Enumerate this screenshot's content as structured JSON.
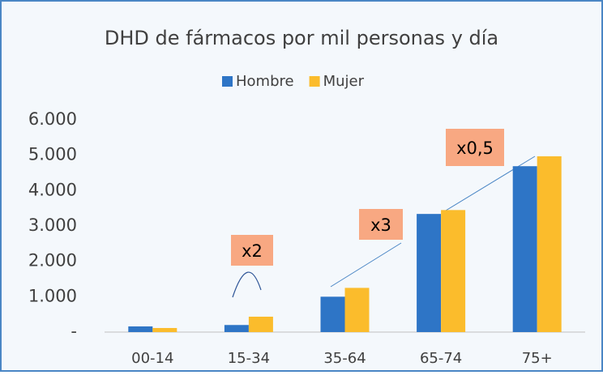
{
  "chart_data": {
    "type": "bar",
    "title": "DHD de fármacos por mil personas y día",
    "categories": [
      "00-14",
      "15-34",
      "35-64",
      "65-74",
      "75+"
    ],
    "series": [
      {
        "name": "Hombre",
        "color": "#2e75c6",
        "values": [
          160,
          200,
          1000,
          3340,
          4690
        ]
      },
      {
        "name": "Mujer",
        "color": "#fbbc2c",
        "values": [
          115,
          435,
          1250,
          3450,
          4970
        ]
      }
    ],
    "ylim": [
      0,
      6000
    ],
    "yticks": [
      {
        "value": 0,
        "label": "-"
      },
      {
        "value": 1000,
        "label": "1.000"
      },
      {
        "value": 2000,
        "label": "2.000"
      },
      {
        "value": 3000,
        "label": "3.000"
      },
      {
        "value": 4000,
        "label": "4.000"
      },
      {
        "value": 5000,
        "label": "5.000"
      },
      {
        "value": 6000,
        "label": "6.000"
      }
    ],
    "legend": "top",
    "annotations": [
      "x2",
      "x3",
      "x0,5"
    ]
  }
}
